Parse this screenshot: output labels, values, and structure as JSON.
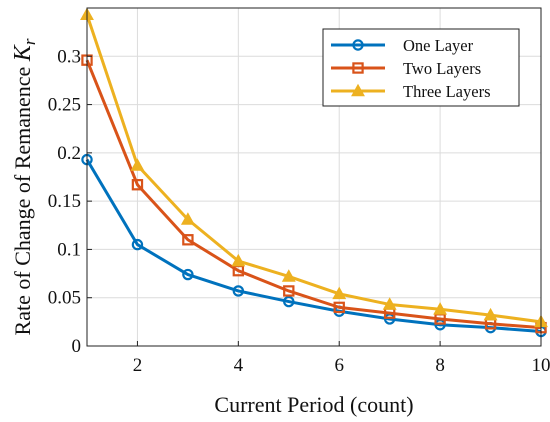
{
  "chart_data": {
    "type": "line",
    "title": "",
    "xlabel": "Current Period (count)",
    "ylabel": "Rate of Change of Remanence",
    "ylabel_symbol": "K",
    "ylabel_subscript": "r",
    "x": [
      1,
      2,
      3,
      4,
      5,
      6,
      7,
      8,
      9,
      10
    ],
    "xlim": [
      1,
      10
    ],
    "ylim": [
      0,
      0.35
    ],
    "xticks": [
      2,
      4,
      6,
      8,
      10
    ],
    "yticks": [
      0,
      0.05,
      0.1,
      0.15,
      0.2,
      0.25,
      0.3
    ],
    "xtick_labels": [
      "2",
      "4",
      "6",
      "8",
      "10"
    ],
    "ytick_labels": [
      "0",
      "0.05",
      "0.1",
      "0.15",
      "0.2",
      "0.25",
      "0.3"
    ],
    "grid": true,
    "legend_position": "top-right",
    "series": [
      {
        "name": "One Layer",
        "color": "#0072BD",
        "marker": "circle",
        "values": [
          0.193,
          0.105,
          0.074,
          0.057,
          0.046,
          0.036,
          0.028,
          0.022,
          0.019,
          0.015
        ]
      },
      {
        "name": "Two Layers",
        "color": "#D95319",
        "marker": "square",
        "values": [
          0.296,
          0.167,
          0.11,
          0.078,
          0.057,
          0.04,
          0.034,
          0.028,
          0.023,
          0.019
        ]
      },
      {
        "name": "Three Layers",
        "color": "#EDB120",
        "marker": "triangle",
        "values": [
          0.343,
          0.187,
          0.131,
          0.088,
          0.072,
          0.054,
          0.043,
          0.038,
          0.032,
          0.025
        ]
      }
    ]
  }
}
